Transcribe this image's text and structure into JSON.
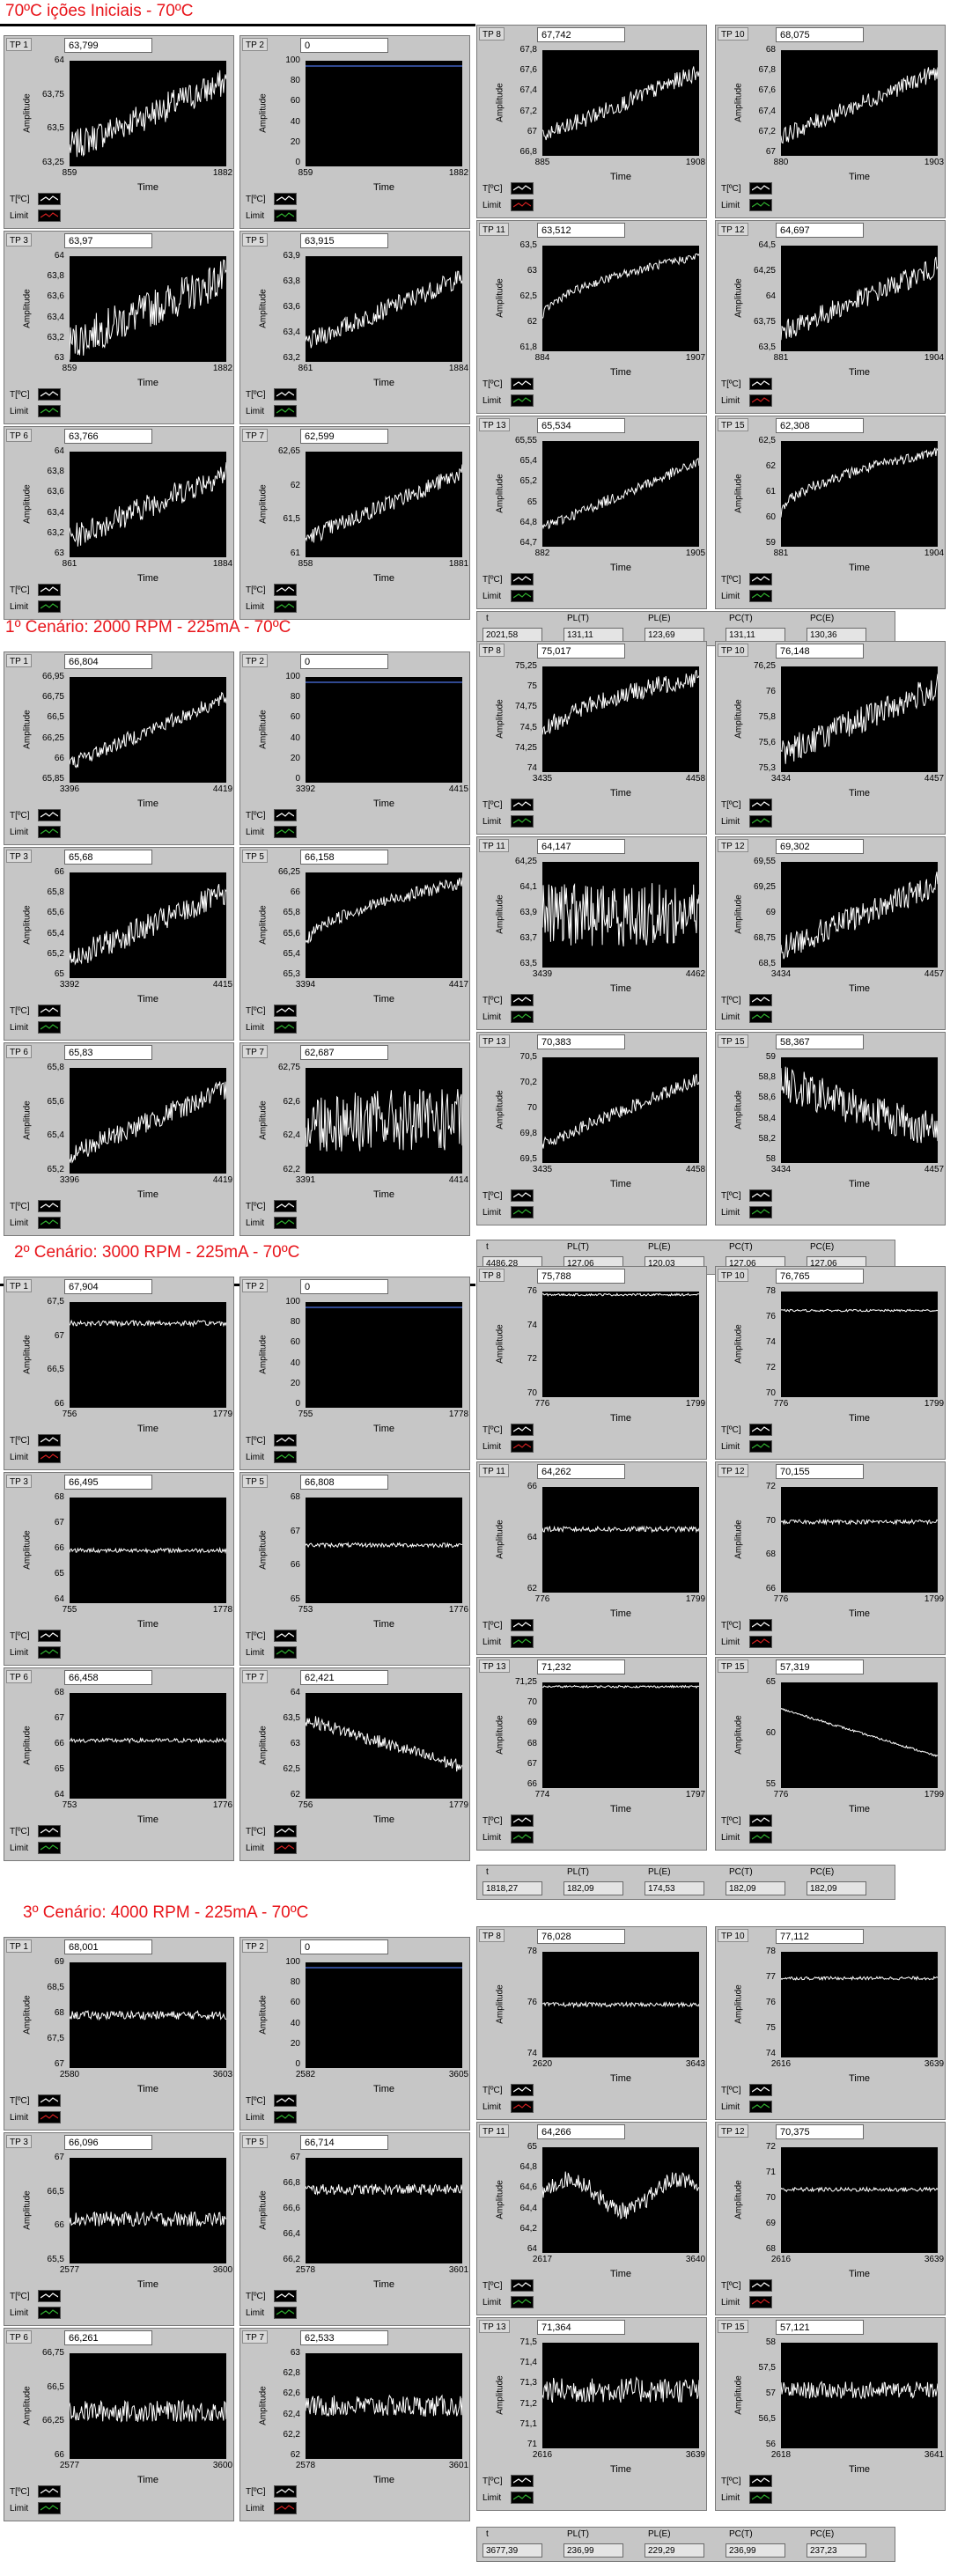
{
  "colors": {
    "title_red": "#e8141a",
    "panel_bg": "#c6c6c6",
    "plot_bg": "#000000",
    "trace": "#ffffff",
    "limit_red": "#d02020",
    "limit_green": "#30b030",
    "ref_blue": "#4060c0"
  },
  "legend": {
    "temp": "T[ºC]",
    "limit": "Limit"
  },
  "axis": {
    "ylabel": "Amplitude",
    "xlabel": "Time"
  },
  "readout_labels": [
    "t",
    "PL(T)",
    "PL(E)",
    "PC(T)",
    "PC(E)"
  ],
  "sections": [
    {
      "title": "70ºC  ições Iniciais -  70ºC",
      "readouts": [
        "2021,58",
        "131,11",
        "123,69",
        "131,11",
        "130,36"
      ],
      "panels": [
        {
          "tp": "TP 1",
          "value": "63,799",
          "yticks": [
            "64",
            "63,75",
            "63,5",
            "63,25"
          ],
          "x0": "859",
          "x1": "1882",
          "shape": "rise",
          "noise": 0.14,
          "limit": "red"
        },
        {
          "tp": "TP 2",
          "value": "0",
          "yticks": [
            "100",
            "80",
            "60",
            "40",
            "20",
            "0"
          ],
          "x0": "859",
          "x1": "1882",
          "shape": "ref",
          "noise": 0,
          "limit": "blue"
        },
        {
          "tp": "TP 3",
          "value": "63,97",
          "yticks": [
            "64",
            "63,8",
            "63,6",
            "63,4",
            "63,2",
            "63"
          ],
          "x0": "859",
          "x1": "1882",
          "shape": "rise",
          "noise": 0.18,
          "limit": "blue"
        },
        {
          "tp": "TP 5",
          "value": "63,915",
          "yticks": [
            "63,9",
            "63,8",
            "63,6",
            "63,4",
            "63,2"
          ],
          "x0": "861",
          "x1": "1884",
          "shape": "rise",
          "noise": 0.09,
          "limit": "green"
        },
        {
          "tp": "TP 6",
          "value": "63,766",
          "yticks": [
            "64",
            "63,8",
            "63,6",
            "63,4",
            "63,2",
            "63"
          ],
          "x0": "861",
          "x1": "1884",
          "shape": "rise",
          "noise": 0.12,
          "limit": "green"
        },
        {
          "tp": "TP 7",
          "value": "62,599",
          "yticks": [
            "62,65",
            "62",
            "61,5",
            "61"
          ],
          "x0": "858",
          "x1": "1881",
          "shape": "rise",
          "noise": 0.08,
          "limit": "green"
        },
        {
          "tp": "TP 8",
          "value": "67,742",
          "yticks": [
            "67,8",
            "67,6",
            "67,4",
            "67,2",
            "67",
            "66,8"
          ],
          "x0": "885",
          "x1": "1908",
          "shape": "rise",
          "noise": 0.08,
          "limit": "red"
        },
        {
          "tp": "TP 10",
          "value": "68,075",
          "yticks": [
            "68",
            "67,8",
            "67,6",
            "67,4",
            "67,2",
            "67"
          ],
          "x0": "880",
          "x1": "1903",
          "shape": "rise",
          "noise": 0.08,
          "limit": "green"
        },
        {
          "tp": "TP 11",
          "value": "63,512",
          "yticks": [
            "63,5",
            "63",
            "62,5",
            "62",
            "61,8"
          ],
          "x0": "884",
          "x1": "1907",
          "shape": "log",
          "noise": 0.04,
          "limit": "blue"
        },
        {
          "tp": "TP 12",
          "value": "64,697",
          "yticks": [
            "64,5",
            "64,25",
            "64",
            "63,75",
            "63,5"
          ],
          "x0": "881",
          "x1": "1904",
          "shape": "rise",
          "noise": 0.1,
          "limit": "red"
        },
        {
          "tp": "TP 13",
          "value": "65,534",
          "yticks": [
            "65,55",
            "65,4",
            "65,2",
            "65",
            "64,8",
            "64,7"
          ],
          "x0": "882",
          "x1": "1905",
          "shape": "rise",
          "noise": 0.05,
          "limit": "green"
        },
        {
          "tp": "TP 15",
          "value": "62,308",
          "yticks": [
            "62,5",
            "62",
            "61",
            "60",
            "59"
          ],
          "x0": "881",
          "x1": "1904",
          "shape": "log",
          "noise": 0.05,
          "limit": "green"
        }
      ]
    },
    {
      "title": "1º Cenário: 2000 RPM - 225mA -  70ºC",
      "readouts": [
        "4486,28",
        "127,06",
        "120,03",
        "127,06",
        "127,06"
      ],
      "panels": [
        {
          "tp": "TP 1",
          "value": "66,804",
          "yticks": [
            "66,95",
            "66,75",
            "66,5",
            "66,25",
            "66",
            "65,85"
          ],
          "x0": "3396",
          "x1": "4419",
          "shape": "rise",
          "noise": 0.07,
          "limit": "green"
        },
        {
          "tp": "TP 2",
          "value": "0",
          "yticks": [
            "100",
            "80",
            "60",
            "40",
            "20",
            "0"
          ],
          "x0": "3392",
          "x1": "4415",
          "shape": "ref",
          "noise": 0,
          "limit": "green"
        },
        {
          "tp": "TP 3",
          "value": "65,68",
          "yticks": [
            "66",
            "65,8",
            "65,6",
            "65,4",
            "65,2",
            "65"
          ],
          "x0": "3392",
          "x1": "4415",
          "shape": "rise",
          "noise": 0.12,
          "limit": "green"
        },
        {
          "tp": "TP 5",
          "value": "66,158",
          "yticks": [
            "66,25",
            "66",
            "65,8",
            "65,6",
            "65,4",
            "65,3"
          ],
          "x0": "3394",
          "x1": "4417",
          "shape": "log",
          "noise": 0.06,
          "limit": "green"
        },
        {
          "tp": "TP 6",
          "value": "65,83",
          "yticks": [
            "65,8",
            "65,6",
            "65,4",
            "65,2"
          ],
          "x0": "3396",
          "x1": "4419",
          "shape": "rise",
          "noise": 0.1,
          "limit": "green"
        },
        {
          "tp": "TP 7",
          "value": "62,687",
          "yticks": [
            "62,75",
            "62,6",
            "62,4",
            "62,2"
          ],
          "x0": "3391",
          "x1": "4414",
          "shape": "flat",
          "noise": 0.3,
          "limit": "green"
        },
        {
          "tp": "TP 8",
          "value": "75,017",
          "yticks": [
            "75,25",
            "75",
            "74,75",
            "74,5",
            "74,25",
            "74"
          ],
          "x0": "3435",
          "x1": "4458",
          "shape": "log",
          "noise": 0.09,
          "limit": "green"
        },
        {
          "tp": "TP 10",
          "value": "76,148",
          "yticks": [
            "76,25",
            "76",
            "75,8",
            "75,6",
            "75,3"
          ],
          "x0": "3434",
          "x1": "4457",
          "shape": "rise",
          "noise": 0.13,
          "limit": "green"
        },
        {
          "tp": "TP 11",
          "value": "64,147",
          "yticks": [
            "64,25",
            "64,1",
            "63,9",
            "63,7",
            "63,5"
          ],
          "x0": "3439",
          "x1": "4462",
          "shape": "flat",
          "noise": 0.3,
          "limit": "blue"
        },
        {
          "tp": "TP 12",
          "value": "69,302",
          "yticks": [
            "69,55",
            "69,25",
            "69",
            "68,75",
            "68,5"
          ],
          "x0": "3434",
          "x1": "4457",
          "shape": "rise",
          "noise": 0.12,
          "limit": "green"
        },
        {
          "tp": "TP 13",
          "value": "70,383",
          "yticks": [
            "70,5",
            "70,2",
            "70",
            "69,8",
            "69,5"
          ],
          "x0": "3435",
          "x1": "4458",
          "shape": "rise",
          "noise": 0.06,
          "limit": "green"
        },
        {
          "tp": "TP 15",
          "value": "58,367",
          "yticks": [
            "59",
            "58,8",
            "58,6",
            "58,4",
            "58,2",
            "58"
          ],
          "x0": "3434",
          "x1": "4457",
          "shape": "fall",
          "noise": 0.18,
          "limit": "green"
        }
      ]
    },
    {
      "title": "2º Cenário: 3000 RPM -  225mA -   70ºC",
      "readouts": [
        "1818,27",
        "182,09",
        "174,53",
        "182,09",
        "182,09"
      ],
      "panels": [
        {
          "tp": "TP 1",
          "value": "67,904",
          "yticks": [
            "67,5",
            "67",
            "66,5",
            "66"
          ],
          "x0": "756",
          "x1": "1779",
          "shape": "steady",
          "level": 0.8,
          "noise": 0.025,
          "limit": "red"
        },
        {
          "tp": "TP 2",
          "value": "0",
          "yticks": [
            "100",
            "80",
            "60",
            "40",
            "20",
            "0"
          ],
          "x0": "755",
          "x1": "1778",
          "shape": "ref",
          "noise": 0,
          "limit": "blue"
        },
        {
          "tp": "TP 3",
          "value": "66,495",
          "yticks": [
            "68",
            "67",
            "66",
            "65",
            "64"
          ],
          "x0": "755",
          "x1": "1778",
          "shape": "steady",
          "level": 0.5,
          "noise": 0.02,
          "limit": "blue"
        },
        {
          "tp": "TP 5",
          "value": "66,808",
          "yticks": [
            "68",
            "67",
            "66",
            "65"
          ],
          "x0": "753",
          "x1": "1776",
          "shape": "steady",
          "level": 0.55,
          "noise": 0.02,
          "limit": "green"
        },
        {
          "tp": "TP 6",
          "value": "66,458",
          "yticks": [
            "68",
            "67",
            "66",
            "65",
            "64"
          ],
          "x0": "753",
          "x1": "1776",
          "shape": "steady",
          "level": 0.55,
          "noise": 0.02,
          "limit": "blue"
        },
        {
          "tp": "TP 7",
          "value": "62,421",
          "yticks": [
            "64",
            "63,5",
            "63",
            "62,5",
            "62"
          ],
          "x0": "756",
          "x1": "1779",
          "shape": "fall",
          "noise": 0.06,
          "limit": "red"
        },
        {
          "tp": "TP 8",
          "value": "75,788",
          "yticks": [
            "76",
            "74",
            "72",
            "70"
          ],
          "x0": "776",
          "x1": "1799",
          "shape": "steady",
          "level": 0.97,
          "noise": 0.01,
          "limit": "red"
        },
        {
          "tp": "TP 10",
          "value": "76,765",
          "yticks": [
            "78",
            "76",
            "74",
            "72",
            "70"
          ],
          "x0": "776",
          "x1": "1799",
          "shape": "steady",
          "level": 0.82,
          "noise": 0.01,
          "limit": "green"
        },
        {
          "tp": "TP 11",
          "value": "64,262",
          "yticks": [
            "66",
            "64",
            "62"
          ],
          "x0": "776",
          "x1": "1799",
          "shape": "steady",
          "level": 0.6,
          "noise": 0.025,
          "limit": "blue"
        },
        {
          "tp": "TP 12",
          "value": "70,155",
          "yticks": [
            "72",
            "70",
            "68",
            "66"
          ],
          "x0": "776",
          "x1": "1799",
          "shape": "steady",
          "level": 0.67,
          "noise": 0.02,
          "limit": "red"
        },
        {
          "tp": "TP 13",
          "value": "71,232",
          "yticks": [
            "71,25",
            "70",
            "69",
            "68",
            "67",
            "66"
          ],
          "x0": "774",
          "x1": "1797",
          "shape": "steady",
          "level": 0.96,
          "noise": 0.01,
          "limit": "green"
        },
        {
          "tp": "TP 15",
          "value": "57,319",
          "yticks": [
            "65",
            "60",
            "55"
          ],
          "x0": "776",
          "x1": "1799",
          "shape": "fall",
          "noise": 0.01,
          "limit": "green"
        }
      ]
    },
    {
      "title": "3º Cenário: 4000 RPM -  225mA -   70ºC",
      "readouts": [
        "3677,39",
        "236,99",
        "229,29",
        "236,99",
        "237,23"
      ],
      "panels": [
        {
          "tp": "TP 1",
          "value": "68,001",
          "yticks": [
            "69",
            "68,5",
            "68",
            "67,5",
            "67"
          ],
          "x0": "2580",
          "x1": "3603",
          "shape": "steady",
          "level": 0.5,
          "noise": 0.04,
          "limit": "red"
        },
        {
          "tp": "TP 2",
          "value": "0",
          "yticks": [
            "100",
            "80",
            "60",
            "40",
            "20",
            "0"
          ],
          "x0": "2582",
          "x1": "3605",
          "shape": "ref",
          "noise": 0,
          "limit": "blue"
        },
        {
          "tp": "TP 3",
          "value": "66,096",
          "yticks": [
            "67",
            "66,5",
            "66",
            "65,5"
          ],
          "x0": "2577",
          "x1": "3600",
          "shape": "steady",
          "level": 0.42,
          "noise": 0.07,
          "limit": "blue"
        },
        {
          "tp": "TP 5",
          "value": "66,714",
          "yticks": [
            "67",
            "66,8",
            "66,6",
            "66,4",
            "66,2"
          ],
          "x0": "2578",
          "x1": "3601",
          "shape": "steady",
          "level": 0.7,
          "noise": 0.05,
          "limit": "green"
        },
        {
          "tp": "TP 6",
          "value": "66,261",
          "yticks": [
            "66,75",
            "66,5",
            "66,25",
            "66"
          ],
          "x0": "2577",
          "x1": "3600",
          "shape": "steady",
          "level": 0.45,
          "noise": 0.1,
          "limit": "green"
        },
        {
          "tp": "TP 7",
          "value": "62,533",
          "yticks": [
            "63",
            "62,8",
            "62,6",
            "62,4",
            "62,2",
            "62"
          ],
          "x0": "2578",
          "x1": "3601",
          "shape": "steady",
          "level": 0.5,
          "noise": 0.1,
          "limit": "red"
        },
        {
          "tp": "TP 8",
          "value": "76,028",
          "yticks": [
            "78",
            "76",
            "74"
          ],
          "x0": "2620",
          "x1": "3643",
          "shape": "steady",
          "level": 0.5,
          "noise": 0.02,
          "limit": "red"
        },
        {
          "tp": "TP 10",
          "value": "77,112",
          "yticks": [
            "78",
            "77",
            "76",
            "75",
            "74"
          ],
          "x0": "2616",
          "x1": "3639",
          "shape": "steady",
          "level": 0.75,
          "noise": 0.015,
          "limit": "green"
        },
        {
          "tp": "TP 11",
          "value": "64,266",
          "yticks": [
            "65",
            "64,8",
            "64,6",
            "64,4",
            "64,2",
            "64"
          ],
          "x0": "2617",
          "x1": "3640",
          "shape": "wave",
          "noise": 0.08,
          "limit": "green"
        },
        {
          "tp": "TP 12",
          "value": "70,375",
          "yticks": [
            "72",
            "71",
            "70",
            "69",
            "68"
          ],
          "x0": "2616",
          "x1": "3639",
          "shape": "steady",
          "level": 0.6,
          "noise": 0.02,
          "limit": "red"
        },
        {
          "tp": "TP 13",
          "value": "71,364",
          "yticks": [
            "71,5",
            "71,4",
            "71,3",
            "71,2",
            "71,1",
            "71"
          ],
          "x0": "2616",
          "x1": "3639",
          "shape": "steady",
          "level": 0.55,
          "noise": 0.12,
          "limit": "green"
        },
        {
          "tp": "TP 15",
          "value": "57,121",
          "yticks": [
            "58",
            "57,5",
            "57",
            "56,5",
            "56"
          ],
          "x0": "2618",
          "x1": "3641",
          "shape": "steady",
          "level": 0.55,
          "noise": 0.08,
          "limit": "green"
        }
      ]
    }
  ]
}
